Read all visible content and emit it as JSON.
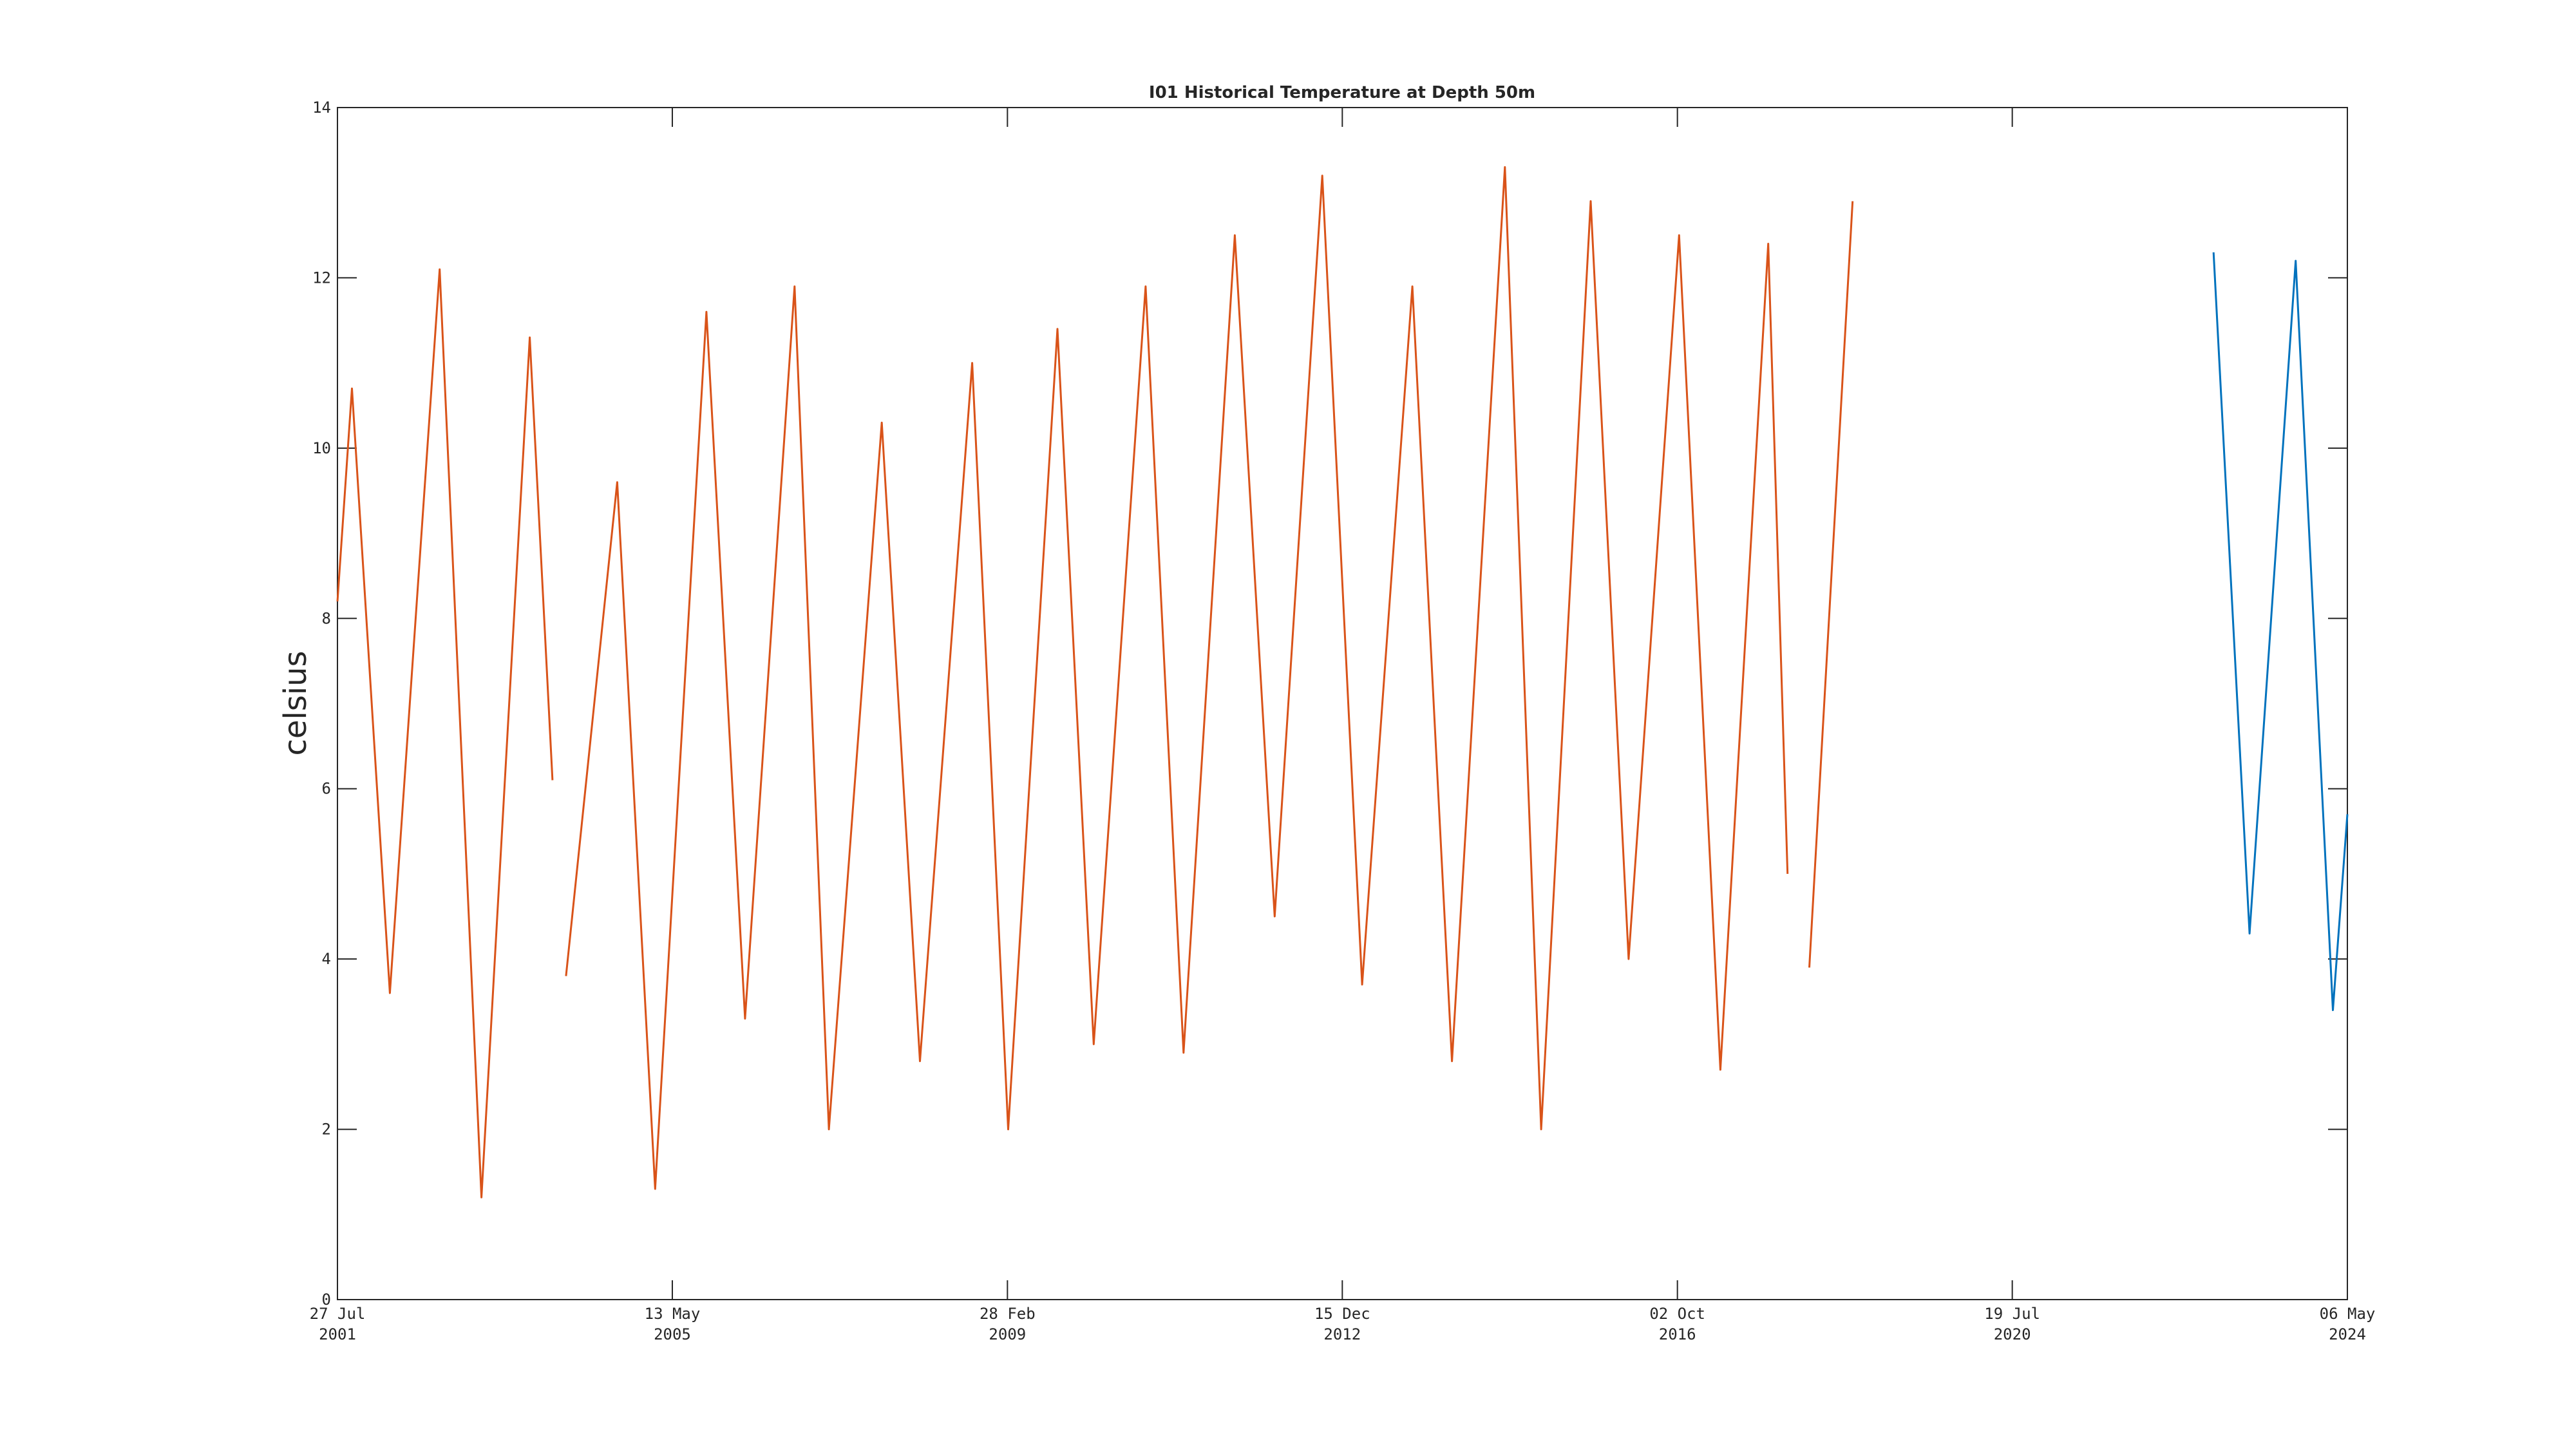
{
  "chart_data": {
    "type": "line",
    "title": "I01 Historical Temperature at Depth 50m",
    "y_label": "celsius",
    "xlim": [
      "2001-07-27",
      "2024-05-06"
    ],
    "xticks": [
      {
        "value": "2001-07-27",
        "label": [
          "27 Jul",
          "2001"
        ]
      },
      {
        "value": "2005-05-13",
        "label": [
          "13 May",
          "2005"
        ]
      },
      {
        "value": "2009-02-28",
        "label": [
          "28 Feb",
          "2009"
        ]
      },
      {
        "value": "2012-12-15",
        "label": [
          "15 Dec",
          "2012"
        ]
      },
      {
        "value": "2016-10-02",
        "label": [
          "02 Oct",
          "2016"
        ]
      },
      {
        "value": "2020-07-19",
        "label": [
          "19 Jul",
          "2020"
        ]
      },
      {
        "value": "2024-05-06",
        "label": [
          "06 May",
          "2024"
        ]
      }
    ],
    "ylim": [
      0,
      14
    ],
    "yticks": [
      0,
      2,
      4,
      6,
      8,
      10,
      12,
      14
    ],
    "series": [
      {
        "color": "#d95319",
        "x": [
          "2001-07-27",
          "2001-09-25",
          "2002-03-01",
          "2002-09-23",
          "2003-03-15",
          "2003-10-01",
          "2004-01-03",
          "2004-01-30",
          "2004-02-28",
          "2004-09-27",
          "2005-03-03",
          "2005-10-01",
          "2006-03-10",
          "2006-10-01",
          "2007-02-20",
          "2007-09-27",
          "2008-03-03",
          "2008-10-05",
          "2009-03-03",
          "2009-09-23",
          "2010-02-20",
          "2010-09-23",
          "2011-02-27",
          "2011-09-27",
          "2012-03-10",
          "2012-09-23",
          "2013-03-07",
          "2013-10-01",
          "2014-03-14",
          "2014-10-19",
          "2015-03-18",
          "2015-10-09",
          "2016-03-14",
          "2016-10-09",
          "2017-03-29",
          "2017-10-13",
          "2018-01-01",
          null,
          "2018-04-01",
          "2018-09-27"
        ],
        "values": [
          8.2,
          10.7,
          3.6,
          12.1,
          1.2,
          11.3,
          6.1,
          null,
          3.8,
          9.6,
          1.3,
          11.6,
          3.3,
          11.9,
          2.0,
          10.3,
          2.8,
          11.0,
          2.0,
          11.4,
          3.0,
          11.9,
          2.9,
          12.5,
          4.5,
          13.2,
          3.7,
          11.9,
          2.8,
          13.3,
          2.0,
          12.9,
          4.0,
          12.5,
          2.7,
          12.4,
          5.0,
          null,
          3.9,
          12.9
        ]
      },
      {
        "color": "#0072bd",
        "x": [
          "2022-10-30",
          "2023-03-28",
          "2023-10-05",
          "2024-03-07",
          "2024-05-06"
        ],
        "values": [
          12.3,
          4.3,
          12.2,
          3.4,
          5.7
        ]
      }
    ]
  }
}
